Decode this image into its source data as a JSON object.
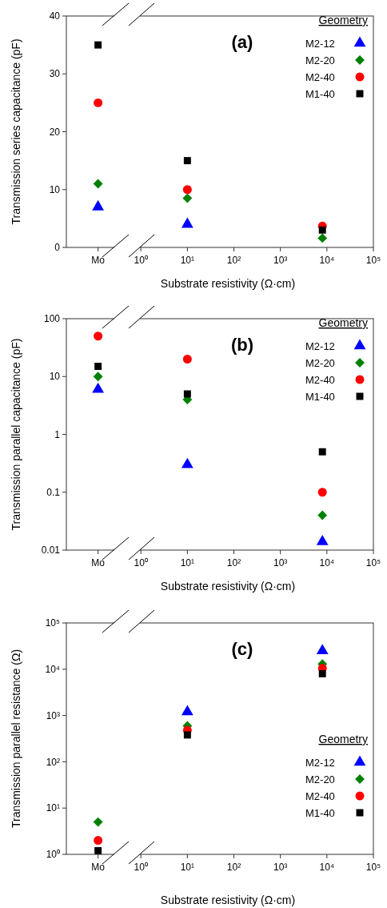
{
  "chart_data": [
    {
      "type": "scatter",
      "title": "(a)",
      "xlabel": "Substrate resistivity (Ω·cm)",
      "ylabel": "Transmission series capacitance (pF)",
      "legend_title": "Geometry",
      "legend": "top right",
      "x": [
        0.12,
        10,
        8000
      ],
      "xlim": [
        0.025,
        100000
      ],
      "xticks": [
        {
          "value": 0.12,
          "label": "Mo"
        },
        {
          "value": 1,
          "label": "10⁰"
        },
        {
          "value": 10,
          "label": "10¹"
        },
        {
          "value": 100,
          "label": "10²"
        },
        {
          "value": 1000,
          "label": "10³"
        },
        {
          "value": 10000,
          "label": "10⁴"
        },
        {
          "value": 100000,
          "label": "10⁵"
        }
      ],
      "log": "x",
      "ylim": [
        0,
        40
      ],
      "yticks": [
        0,
        10,
        20,
        30,
        40
      ],
      "grid": false,
      "series": [
        {
          "name": "M2-12",
          "color": "#0000ff",
          "marker": "triangle",
          "values": [
            7,
            4,
            null
          ]
        },
        {
          "name": "M2-20",
          "color": "#008000",
          "marker": "diamond",
          "values": [
            11,
            8.5,
            1.6
          ]
        },
        {
          "name": "M2-40",
          "color": "#ff0000",
          "marker": "circle",
          "values": [
            25,
            10,
            3.7
          ]
        },
        {
          "name": "M1-40",
          "color": "#000000",
          "marker": "square",
          "values": [
            35,
            15,
            3
          ]
        }
      ]
    },
    {
      "type": "scatter",
      "title": "(b)",
      "xlabel": "Substrate resistivity (Ω·cm)",
      "ylabel": "Transmission parallel capacitance (pF)",
      "legend_title": "Geometry",
      "legend": "top right",
      "x": [
        0.12,
        10,
        8000
      ],
      "xlim": [
        0.025,
        100000
      ],
      "xticks": [
        {
          "value": 0.12,
          "label": "Mo"
        },
        {
          "value": 1,
          "label": "10⁰"
        },
        {
          "value": 10,
          "label": "10¹"
        },
        {
          "value": 100,
          "label": "10²"
        },
        {
          "value": 1000,
          "label": "10³"
        },
        {
          "value": 10000,
          "label": "10⁴"
        },
        {
          "value": 100000,
          "label": "10⁵"
        }
      ],
      "log": "xy",
      "ylim": [
        0.01,
        100
      ],
      "yticks": [
        0.01,
        0.1,
        1,
        10,
        100
      ],
      "grid": false,
      "series": [
        {
          "name": "M2-12",
          "color": "#0000ff",
          "marker": "triangle",
          "values": [
            6,
            0.3,
            0.014
          ]
        },
        {
          "name": "M2-20",
          "color": "#008000",
          "marker": "diamond",
          "values": [
            10,
            4,
            0.04
          ]
        },
        {
          "name": "M2-40",
          "color": "#ff0000",
          "marker": "circle",
          "values": [
            50,
            20,
            0.1
          ]
        },
        {
          "name": "M1-40",
          "color": "#000000",
          "marker": "square",
          "values": [
            15,
            5,
            0.5
          ]
        }
      ]
    },
    {
      "type": "scatter",
      "title": "(c)",
      "xlabel": "Substrate resistivity (Ω·cm)",
      "ylabel": "Transmission parallel resistance (Ω)",
      "legend_title": "Geometry",
      "legend": "bottom right",
      "x": [
        0.12,
        10,
        8000
      ],
      "xlim": [
        0.025,
        100000
      ],
      "xticks": [
        {
          "value": 0.12,
          "label": "Mo"
        },
        {
          "value": 1,
          "label": "10⁰"
        },
        {
          "value": 10,
          "label": "10¹"
        },
        {
          "value": 100,
          "label": "10²"
        },
        {
          "value": 1000,
          "label": "10³"
        },
        {
          "value": 10000,
          "label": "10⁴"
        },
        {
          "value": 100000,
          "label": "10⁵"
        }
      ],
      "log": "xy",
      "ylim": [
        1,
        100000
      ],
      "yticks": [
        {
          "value": 1,
          "label": "10⁰"
        },
        {
          "value": 10,
          "label": "10¹"
        },
        {
          "value": 100,
          "label": "10²"
        },
        {
          "value": 1000,
          "label": "10³"
        },
        {
          "value": 10000,
          "label": "10⁴"
        },
        {
          "value": 100000,
          "label": "10⁵"
        }
      ],
      "grid": false,
      "series": [
        {
          "name": "M2-12",
          "color": "#0000ff",
          "marker": "triangle",
          "values": [
            null,
            1200,
            25000
          ]
        },
        {
          "name": "M2-20",
          "color": "#008000",
          "marker": "diamond",
          "values": [
            5,
            600,
            13000
          ]
        },
        {
          "name": "M2-40",
          "color": "#ff0000",
          "marker": "circle",
          "values": [
            2,
            480,
            10500
          ]
        },
        {
          "name": "M1-40",
          "color": "#000000",
          "marker": "square",
          "values": [
            1.2,
            380,
            8000
          ]
        }
      ]
    }
  ]
}
